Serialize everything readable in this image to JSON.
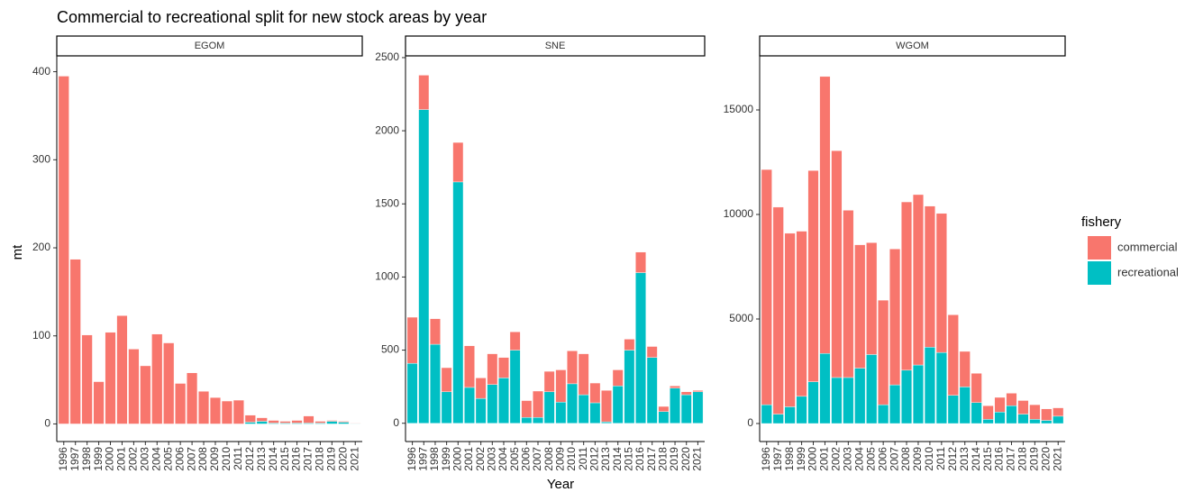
{
  "title": "Commercial to recreational split for new stock areas by year",
  "xlabel": "Year",
  "ylabel": "mt",
  "legend_title": "fishery",
  "chart_data": [
    {
      "type": "bar",
      "stacked": true,
      "title": "EGOM",
      "categories": [
        "1996",
        "1997",
        "1998",
        "1999",
        "2000",
        "2001",
        "2002",
        "2003",
        "2004",
        "2005",
        "2006",
        "2007",
        "2008",
        "2009",
        "2010",
        "2011",
        "2012",
        "2013",
        "2014",
        "2015",
        "2016",
        "2017",
        "2018",
        "2019",
        "2020",
        "2021"
      ],
      "series": [
        {
          "name": "commercial",
          "color": "#F8766D",
          "values": [
            395,
            187,
            101,
            48,
            104,
            123,
            85,
            66,
            102,
            92,
            46,
            58,
            37,
            30,
            26,
            27,
            8,
            4,
            3,
            2,
            3,
            8,
            2,
            1,
            1,
            0.5
          ]
        },
        {
          "name": "recreational",
          "color": "#00BFC4",
          "values": [
            0,
            0,
            0,
            0,
            0,
            0,
            0,
            0,
            0,
            0,
            0,
            0,
            0,
            0,
            0,
            0,
            2,
            3,
            1,
            1,
            1,
            1,
            1,
            3,
            2,
            0.5
          ]
        }
      ],
      "ylim": [
        -20,
        418
      ],
      "yticks": [
        0,
        100,
        200,
        300,
        400
      ]
    },
    {
      "type": "bar",
      "stacked": true,
      "title": "SNE",
      "categories": [
        "1996",
        "1997",
        "1998",
        "1999",
        "2000",
        "2001",
        "2002",
        "2003",
        "2004",
        "2005",
        "2006",
        "2007",
        "2008",
        "2009",
        "2010",
        "2011",
        "2012",
        "2013",
        "2014",
        "2015",
        "2016",
        "2017",
        "2018",
        "2019",
        "2020",
        "2021"
      ],
      "series": [
        {
          "name": "commercial",
          "color": "#F8766D",
          "values": [
            315,
            235,
            175,
            165,
            270,
            285,
            140,
            210,
            140,
            125,
            115,
            180,
            140,
            220,
            225,
            280,
            135,
            215,
            110,
            75,
            140,
            75,
            35,
            15,
            20,
            10
          ]
        },
        {
          "name": "recreational",
          "color": "#00BFC4",
          "values": [
            410,
            2145,
            540,
            215,
            1650,
            245,
            170,
            265,
            310,
            500,
            40,
            40,
            215,
            145,
            270,
            195,
            140,
            10,
            255,
            500,
            1030,
            450,
            80,
            240,
            195,
            215
          ]
        }
      ],
      "ylim": [
        -125,
        2512
      ],
      "yticks": [
        0,
        500,
        1000,
        1500,
        2000,
        2500
      ]
    },
    {
      "type": "bar",
      "stacked": true,
      "title": "WGOM",
      "categories": [
        "1996",
        "1997",
        "1998",
        "1999",
        "2000",
        "2001",
        "2002",
        "2003",
        "2004",
        "2005",
        "2006",
        "2007",
        "2008",
        "2009",
        "2010",
        "2011",
        "2012",
        "2013",
        "2014",
        "2015",
        "2016",
        "2017",
        "2018",
        "2019",
        "2020",
        "2021"
      ],
      "series": [
        {
          "name": "commercial",
          "color": "#F8766D",
          "values": [
            11250,
            9900,
            8300,
            7900,
            10100,
            13250,
            10850,
            8000,
            5900,
            5350,
            5000,
            6500,
            8050,
            8150,
            6750,
            6650,
            3850,
            1700,
            1400,
            650,
            700,
            600,
            650,
            700,
            550,
            400
          ]
        },
        {
          "name": "recreational",
          "color": "#00BFC4",
          "values": [
            900,
            450,
            800,
            1300,
            2000,
            3350,
            2200,
            2200,
            2650,
            3300,
            900,
            1850,
            2550,
            2800,
            3650,
            3400,
            1350,
            1750,
            1000,
            200,
            550,
            850,
            450,
            200,
            150,
            350
          ]
        }
      ],
      "ylim": [
        -862,
        17586
      ],
      "yticks": [
        0,
        5000,
        10000,
        15000
      ]
    }
  ]
}
